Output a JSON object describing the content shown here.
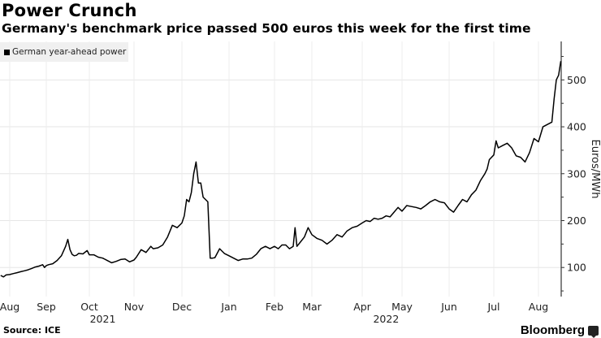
{
  "header": {
    "title": "Power Crunch",
    "subtitle": "Germany's benchmark price passed 500 euros this week for the first time"
  },
  "footer": {
    "source": "Source: ICE",
    "brand": "Bloomberg",
    "brand_icon": "bloomberg-chart-icon"
  },
  "chart_data": {
    "type": "line",
    "title": "Power Crunch",
    "subtitle": "Germany's benchmark price passed 500 euros this week for the first time",
    "xlabel": "",
    "ylabel": "Euros/MWh",
    "ylim": [
      38,
      582
    ],
    "yticks": [
      100,
      200,
      300,
      400,
      500
    ],
    "ytick_labels": [
      "100",
      "200",
      "300",
      "400",
      "500"
    ],
    "y_axis_side": "right",
    "grid": true,
    "legend": {
      "placement": "top-left",
      "entries": [
        "German year-ahead power"
      ]
    },
    "x_ticks": [
      {
        "label": "Aug",
        "m": 0
      },
      {
        "label": "Sep",
        "m": 1
      },
      {
        "label": "Oct",
        "m": 2
      },
      {
        "label": "Nov",
        "m": 3
      },
      {
        "label": "Dec",
        "m": 4
      },
      {
        "label": "Jan",
        "m": 5
      },
      {
        "label": "Feb",
        "m": 6
      },
      {
        "label": "Mar",
        "m": 7
      },
      {
        "label": "Apr",
        "m": 8
      },
      {
        "label": "May",
        "m": 9
      },
      {
        "label": "Jun",
        "m": 10
      },
      {
        "label": "Jul",
        "m": 11
      },
      {
        "label": "Aug",
        "m": 12
      }
    ],
    "year_labels": [
      {
        "label": "2021",
        "m": 2.3
      },
      {
        "label": "2022",
        "m": 8.6
      }
    ],
    "x_unit": "months since Aug 2021",
    "series": [
      {
        "name": "German year-ahead power",
        "color": "#000000",
        "x": [
          -0.25,
          -0.17,
          -0.1,
          0.0,
          0.1,
          0.2,
          0.3,
          0.4,
          0.5,
          0.6,
          0.7,
          0.8,
          0.9,
          0.95,
          1.0,
          1.05,
          1.15,
          1.25,
          1.35,
          1.45,
          1.5,
          1.55,
          1.6,
          1.65,
          1.7,
          1.75,
          1.85,
          1.95,
          2.0,
          2.1,
          2.2,
          2.3,
          2.4,
          2.5,
          2.6,
          2.7,
          2.8,
          2.9,
          3.0,
          3.05,
          3.15,
          3.25,
          3.35,
          3.4,
          3.5,
          3.6,
          3.7,
          3.8,
          3.9,
          4.0,
          4.05,
          4.1,
          4.15,
          4.2,
          4.25,
          4.3,
          4.35,
          4.4,
          4.45,
          4.5,
          4.55,
          4.6,
          4.65,
          4.7,
          4.8,
          4.85,
          4.9,
          5.0,
          5.1,
          5.2,
          5.3,
          5.4,
          5.5,
          5.6,
          5.7,
          5.8,
          5.9,
          6.0,
          6.1,
          6.2,
          6.3,
          6.4,
          6.5,
          6.55,
          6.6,
          6.7,
          6.8,
          6.9,
          7.0,
          7.1,
          7.2,
          7.3,
          7.4,
          7.5,
          7.6,
          7.7,
          7.8,
          7.9,
          8.0,
          8.1,
          8.2,
          8.3,
          8.4,
          8.5,
          8.6,
          8.7,
          8.8,
          8.9,
          9.0,
          9.1,
          9.2,
          9.3,
          9.4,
          9.5,
          9.6,
          9.7,
          9.8,
          9.9,
          10.0,
          10.1,
          10.2,
          10.3,
          10.4,
          10.5,
          10.6,
          10.7,
          10.8,
          10.85,
          10.9,
          11.0,
          11.05,
          11.1,
          11.2,
          11.3,
          11.4,
          11.5,
          11.6,
          11.7,
          11.8,
          11.9,
          12.0,
          12.1,
          12.2,
          12.3,
          12.35,
          12.4,
          12.45,
          12.5
        ],
        "y": [
          83,
          80,
          84,
          85,
          87,
          89,
          91,
          93,
          95,
          98,
          101,
          103,
          106,
          100,
          104,
          106,
          108,
          115,
          125,
          145,
          160,
          138,
          128,
          125,
          126,
          130,
          129,
          136,
          127,
          127,
          122,
          120,
          115,
          110,
          113,
          117,
          118,
          112,
          116,
          122,
          138,
          132,
          145,
          140,
          142,
          148,
          165,
          190,
          185,
          195,
          210,
          245,
          240,
          260,
          300,
          325,
          280,
          280,
          250,
          245,
          240,
          120,
          120,
          121,
          140,
          135,
          130,
          125,
          120,
          115,
          118,
          118,
          120,
          128,
          140,
          145,
          140,
          145,
          140,
          148,
          148,
          140,
          145,
          185,
          145,
          155,
          165,
          185,
          170,
          162,
          158,
          150,
          158,
          170,
          165,
          178,
          185,
          188,
          195,
          200,
          198,
          205,
          203,
          205,
          210,
          208,
          218,
          228,
          220,
          232,
          230,
          228,
          225,
          232,
          240,
          245,
          240,
          238,
          225,
          218,
          232,
          245,
          240,
          255,
          265,
          285,
          300,
          310,
          330,
          340,
          370,
          355,
          360,
          365,
          355,
          338,
          335,
          325,
          345,
          375,
          368,
          400,
          405,
          410,
          460,
          500,
          510,
          540
        ]
      }
    ]
  }
}
